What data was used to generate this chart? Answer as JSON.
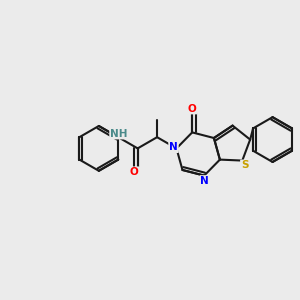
{
  "background_color": "#EBEBEB",
  "bond_color": "#1a1a1a",
  "bond_width": 1.5,
  "atom_colors": {
    "N": "#0000FF",
    "O": "#FF0000",
    "S": "#C8A000",
    "NH": "#4A8A8A",
    "C": "#1a1a1a"
  },
  "figsize": [
    3.0,
    3.0
  ],
  "dpi": 100
}
